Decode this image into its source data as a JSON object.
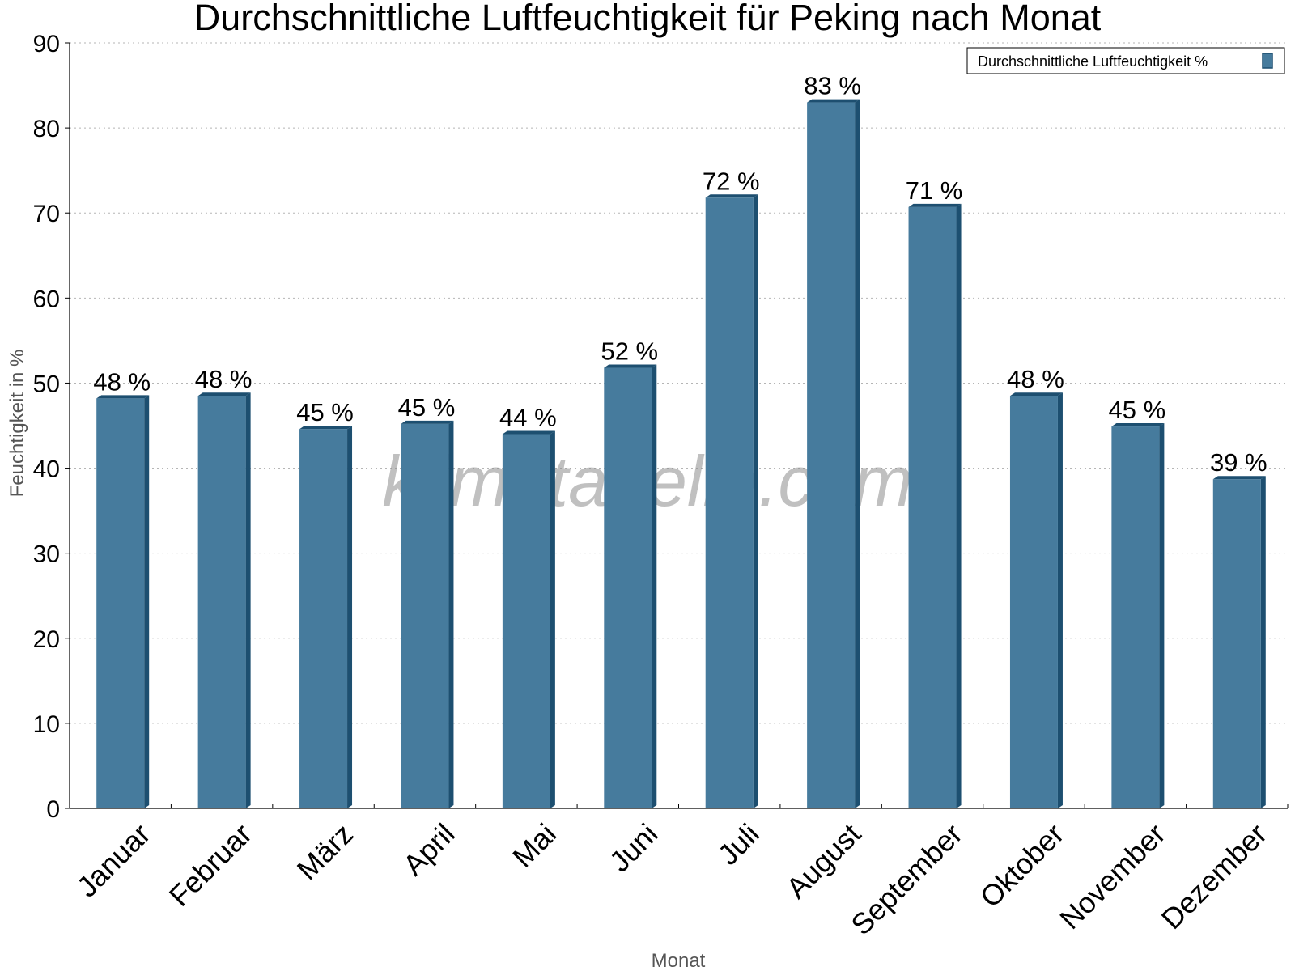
{
  "chart_data": {
    "type": "bar",
    "title": "Durchschnittliche Luftfeuchtigkeit für Peking nach Monat",
    "xlabel": "Monat",
    "ylabel": "Feuchtigkeit in %",
    "categories": [
      "Januar",
      "Februar",
      "März",
      "April",
      "Mai",
      "Juni",
      "Juli",
      "August",
      "September",
      "Oktober",
      "November",
      "Dezember"
    ],
    "series": [
      {
        "name": "Durchschnittliche Luftfeuchtigkeit %",
        "values": [
          48.2,
          48.5,
          44.6,
          45.2,
          44.0,
          51.8,
          71.8,
          83.0,
          70.7,
          48.5,
          44.9,
          38.7
        ],
        "labels": [
          "48 %",
          "48 %",
          "45 %",
          "45 %",
          "44 %",
          "52 %",
          "72 %",
          "83 %",
          "71 %",
          "48 %",
          "45 %",
          "39 %"
        ],
        "color": "#467b9d",
        "side_color": "#1d4f70"
      }
    ],
    "ylim": [
      0,
      90
    ],
    "yticks": [
      0,
      10,
      20,
      30,
      40,
      50,
      60,
      70,
      80,
      90
    ],
    "grid": true,
    "legend_position": "top-right",
    "watermark": "klimatabelle.com"
  }
}
